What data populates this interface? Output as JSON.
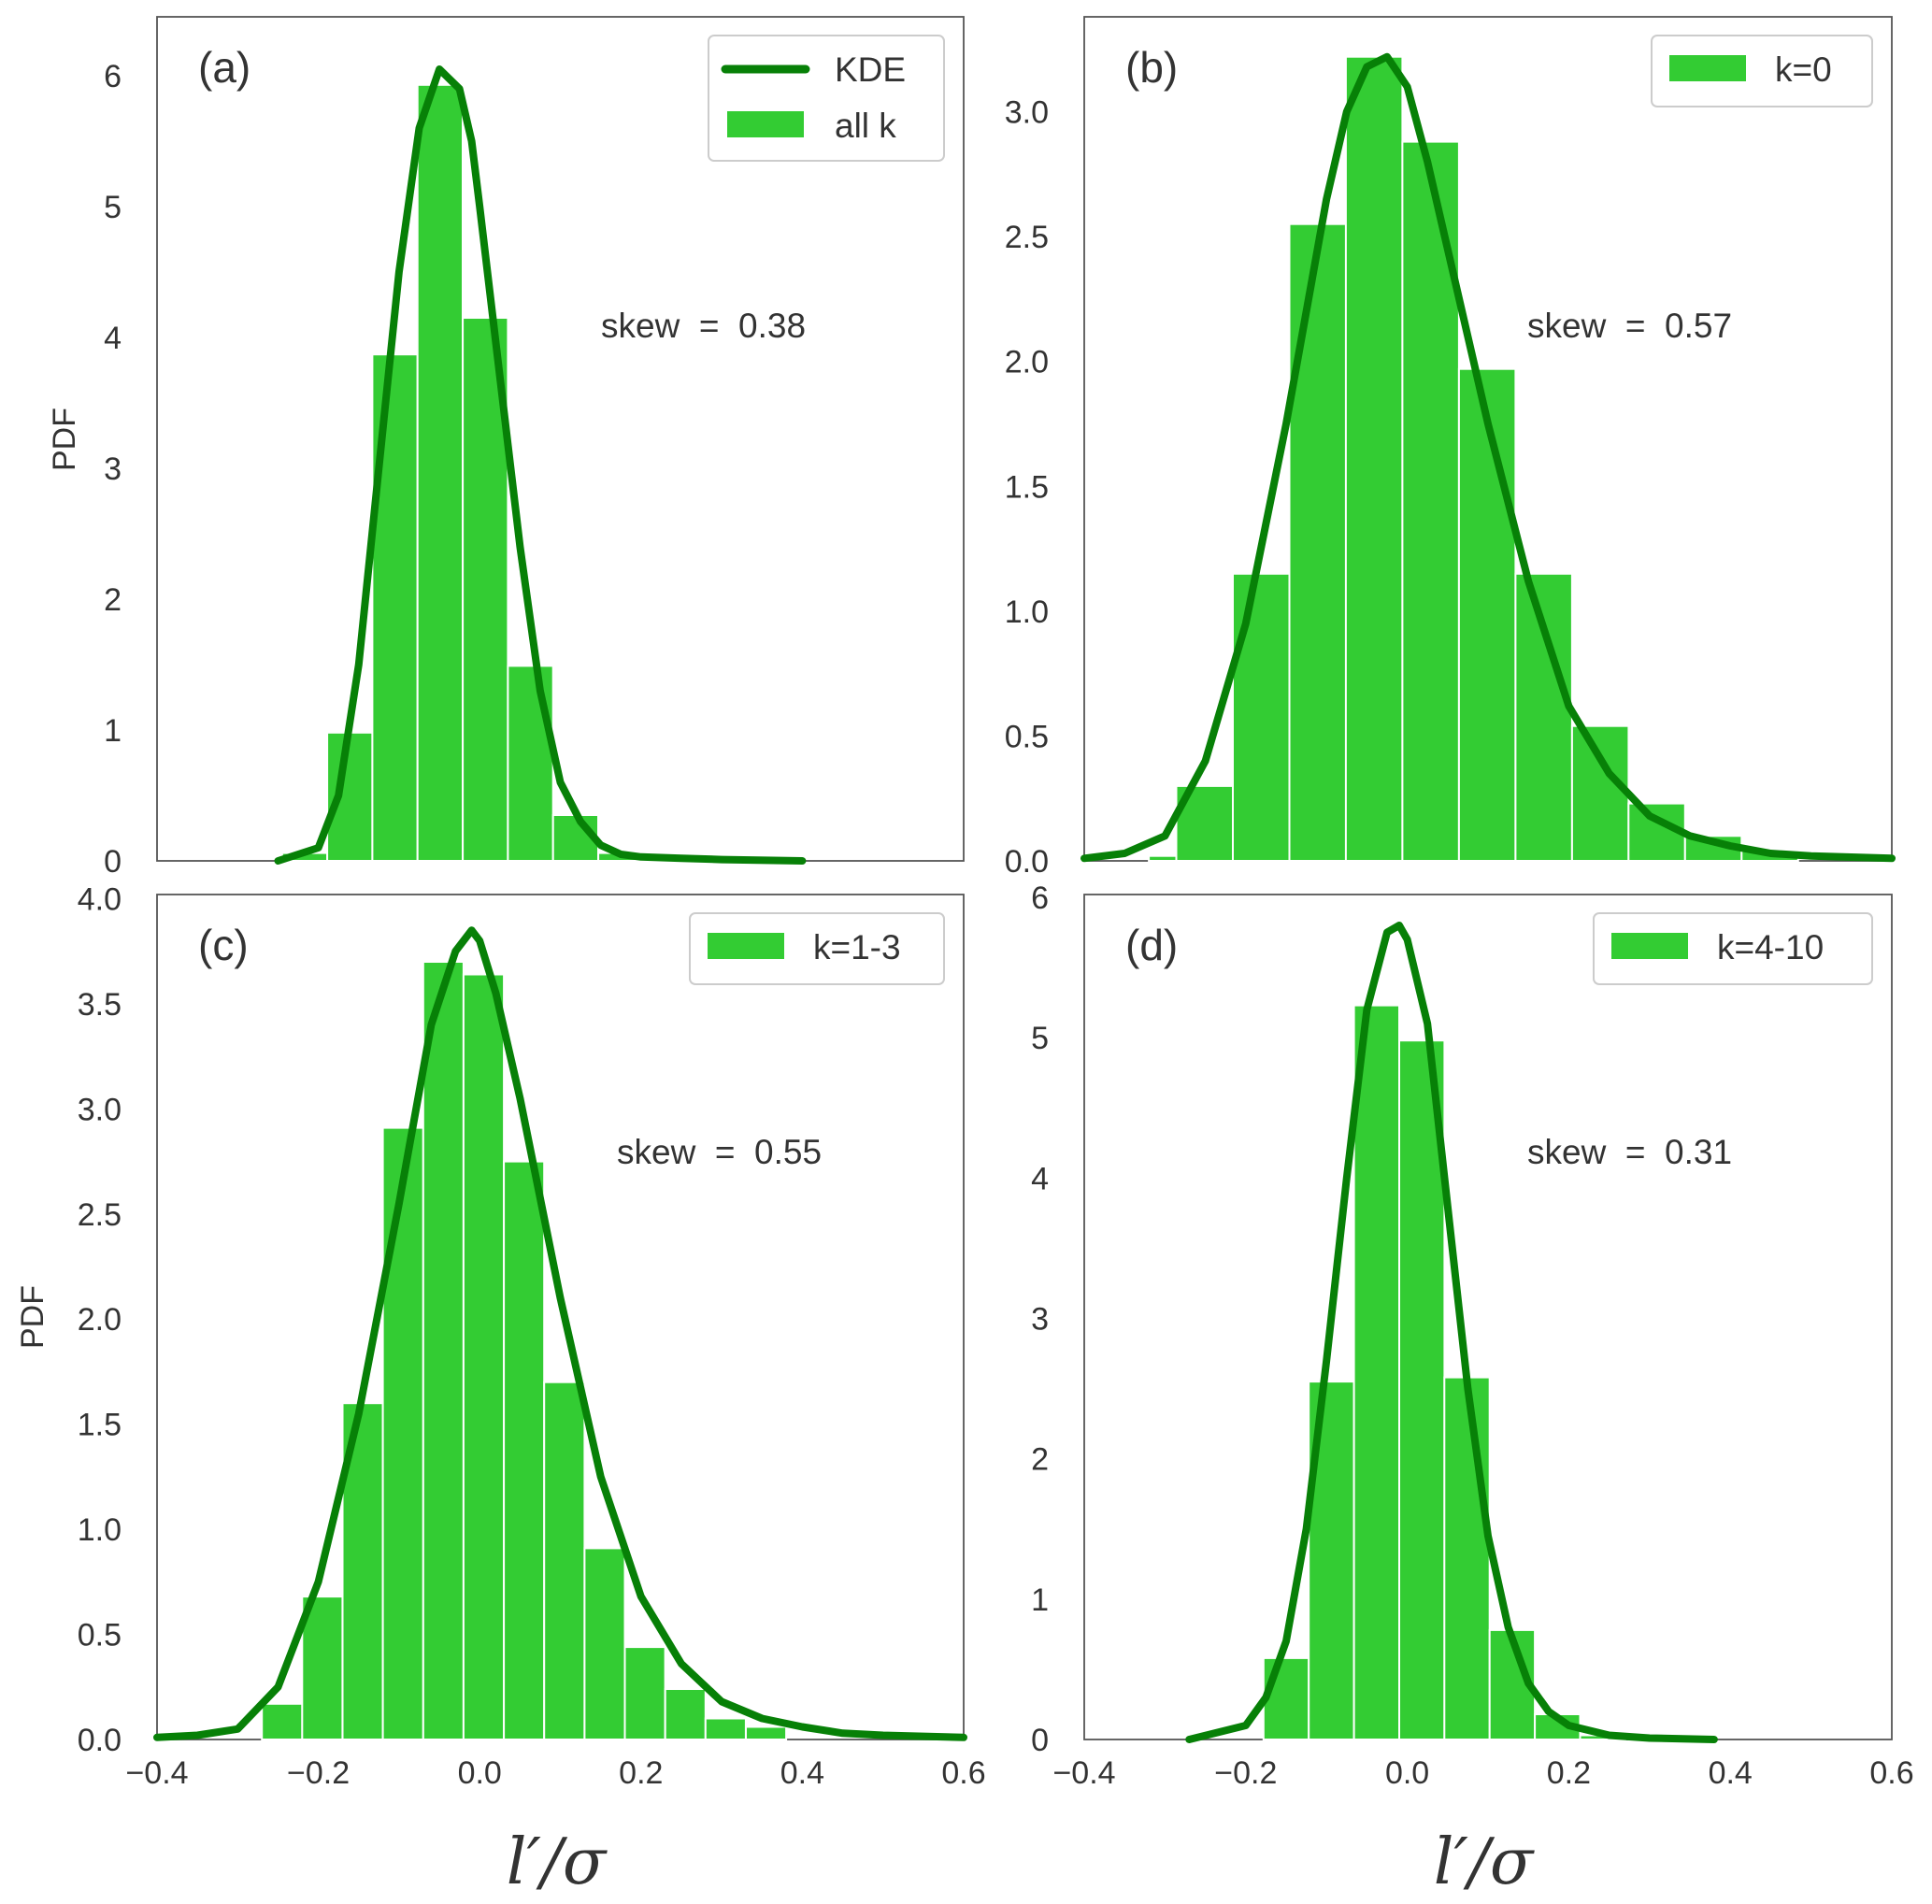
{
  "colors": {
    "bar": "#33cc33",
    "kde": "#078007",
    "frame": "#555555",
    "text": "#333333",
    "legend_border": "#cccccc"
  },
  "chart_data": [
    {
      "type": "bar",
      "panel_label": "(a)",
      "annotation": "skew  =  0.38",
      "legend": [
        {
          "kind": "line",
          "label": "KDE"
        },
        {
          "kind": "bar",
          "label": "all k"
        }
      ],
      "ylabel": "PDF",
      "xlabel": "",
      "xlim": [
        -0.4,
        0.6
      ],
      "ylim": [
        0,
        6.45
      ],
      "yticks": [
        0,
        1,
        2,
        3,
        4,
        5,
        6
      ],
      "ytick_labels": [
        "0",
        "1",
        "2",
        "3",
        "4",
        "5",
        "6"
      ],
      "xticks": [],
      "xtick_labels": [],
      "bins": [
        {
          "x0": -0.245,
          "x1": -0.189,
          "value": 0.06
        },
        {
          "x0": -0.189,
          "x1": -0.133,
          "value": 0.98
        },
        {
          "x0": -0.133,
          "x1": -0.077,
          "value": 3.87
        },
        {
          "x0": -0.077,
          "x1": -0.021,
          "value": 5.93
        },
        {
          "x0": -0.021,
          "x1": 0.035,
          "value": 4.15
        },
        {
          "x0": 0.035,
          "x1": 0.091,
          "value": 1.49
        },
        {
          "x0": 0.091,
          "x1": 0.147,
          "value": 0.35
        },
        {
          "x0": 0.147,
          "x1": 0.203,
          "value": 0.06
        },
        {
          "x0": 0.203,
          "x1": 0.259,
          "value": 0.01
        }
      ],
      "kde": {
        "x": [
          -0.25,
          -0.2,
          -0.175,
          -0.15,
          -0.125,
          -0.1,
          -0.075,
          -0.05,
          -0.025,
          -0.01,
          0.0,
          0.025,
          0.05,
          0.075,
          0.1,
          0.125,
          0.15,
          0.175,
          0.2,
          0.25,
          0.3,
          0.4
        ],
        "y": [
          0.0,
          0.1,
          0.5,
          1.5,
          3.0,
          4.5,
          5.6,
          6.05,
          5.9,
          5.5,
          5.0,
          3.7,
          2.4,
          1.3,
          0.6,
          0.3,
          0.12,
          0.05,
          0.03,
          0.02,
          0.01,
          0.0
        ]
      }
    },
    {
      "type": "bar",
      "panel_label": "(b)",
      "annotation": "skew  =  0.57",
      "legend": [
        {
          "kind": "bar",
          "label": "k=0"
        }
      ],
      "ylabel": "",
      "xlabel": "",
      "xlim": [
        -0.4,
        0.6
      ],
      "ylim": [
        0,
        3.38
      ],
      "yticks": [
        0,
        0.5,
        1,
        1.5,
        2,
        2.5,
        3
      ],
      "ytick_labels": [
        "0.0",
        "0.5",
        "1.0",
        "1.5",
        "2.0",
        "2.5",
        "3.0"
      ],
      "xticks": [],
      "xtick_labels": [],
      "bins": [
        {
          "x0": -0.32,
          "x1": -0.286,
          "value": 0.02
        },
        {
          "x0": -0.286,
          "x1": -0.216,
          "value": 0.3
        },
        {
          "x0": -0.216,
          "x1": -0.146,
          "value": 1.15
        },
        {
          "x0": -0.146,
          "x1": -0.076,
          "value": 2.55
        },
        {
          "x0": -0.076,
          "x1": -0.006,
          "value": 3.22
        },
        {
          "x0": -0.006,
          "x1": 0.064,
          "value": 2.88
        },
        {
          "x0": 0.064,
          "x1": 0.134,
          "value": 1.97
        },
        {
          "x0": 0.134,
          "x1": 0.204,
          "value": 1.15
        },
        {
          "x0": 0.204,
          "x1": 0.274,
          "value": 0.54
        },
        {
          "x0": 0.274,
          "x1": 0.344,
          "value": 0.23
        },
        {
          "x0": 0.344,
          "x1": 0.414,
          "value": 0.1
        },
        {
          "x0": 0.414,
          "x1": 0.484,
          "value": 0.04
        }
      ],
      "kde": {
        "x": [
          -0.4,
          -0.35,
          -0.3,
          -0.25,
          -0.2,
          -0.15,
          -0.1,
          -0.075,
          -0.05,
          -0.025,
          0.0,
          0.025,
          0.05,
          0.1,
          0.15,
          0.2,
          0.25,
          0.3,
          0.35,
          0.4,
          0.45,
          0.5,
          0.6
        ],
        "y": [
          0.01,
          0.03,
          0.1,
          0.4,
          0.95,
          1.75,
          2.65,
          3.0,
          3.18,
          3.22,
          3.1,
          2.8,
          2.45,
          1.75,
          1.12,
          0.62,
          0.35,
          0.18,
          0.1,
          0.06,
          0.03,
          0.02,
          0.01
        ]
      }
    },
    {
      "type": "bar",
      "panel_label": "(c)",
      "annotation": "skew  =  0.55",
      "legend": [
        {
          "kind": "bar",
          "label": "k=1-3"
        }
      ],
      "ylabel": "PDF",
      "xlabel": "l′/σ",
      "xlim": [
        -0.4,
        0.6
      ],
      "ylim": [
        0,
        4.02
      ],
      "yticks": [
        0,
        0.5,
        1,
        1.5,
        2,
        2.5,
        3,
        3.5,
        4
      ],
      "ytick_labels": [
        "0.0",
        "0.5",
        "1.0",
        "1.5",
        "2.0",
        "2.5",
        "3.0",
        "3.5",
        "4.0"
      ],
      "xticks": [
        -0.4,
        -0.2,
        0,
        0.2,
        0.4,
        0.6
      ],
      "xtick_labels": [
        "−0.4",
        "−0.2",
        "0.0",
        "0.2",
        "0.4",
        "0.6"
      ],
      "bins": [
        {
          "x0": -0.27,
          "x1": -0.22,
          "value": 0.17
        },
        {
          "x0": -0.22,
          "x1": -0.17,
          "value": 0.68
        },
        {
          "x0": -0.17,
          "x1": -0.12,
          "value": 1.6
        },
        {
          "x0": -0.12,
          "x1": -0.07,
          "value": 2.91
        },
        {
          "x0": -0.07,
          "x1": -0.02,
          "value": 3.7
        },
        {
          "x0": -0.02,
          "x1": 0.03,
          "value": 3.64
        },
        {
          "x0": 0.03,
          "x1": 0.08,
          "value": 2.75
        },
        {
          "x0": 0.08,
          "x1": 0.13,
          "value": 1.7
        },
        {
          "x0": 0.13,
          "x1": 0.18,
          "value": 0.91
        },
        {
          "x0": 0.18,
          "x1": 0.23,
          "value": 0.44
        },
        {
          "x0": 0.23,
          "x1": 0.28,
          "value": 0.24
        },
        {
          "x0": 0.28,
          "x1": 0.33,
          "value": 0.1
        },
        {
          "x0": 0.33,
          "x1": 0.38,
          "value": 0.06
        }
      ],
      "kde": {
        "x": [
          -0.4,
          -0.35,
          -0.3,
          -0.25,
          -0.2,
          -0.15,
          -0.1,
          -0.06,
          -0.03,
          -0.01,
          0.0,
          0.02,
          0.05,
          0.1,
          0.15,
          0.2,
          0.25,
          0.3,
          0.35,
          0.4,
          0.45,
          0.5,
          0.6
        ],
        "y": [
          0.01,
          0.02,
          0.05,
          0.25,
          0.75,
          1.55,
          2.55,
          3.4,
          3.75,
          3.85,
          3.8,
          3.55,
          3.05,
          2.1,
          1.25,
          0.68,
          0.36,
          0.18,
          0.1,
          0.06,
          0.03,
          0.02,
          0.01
        ]
      }
    },
    {
      "type": "bar",
      "panel_label": "(d)",
      "annotation": "skew  =  0.31",
      "legend": [
        {
          "kind": "bar",
          "label": "k=4-10"
        }
      ],
      "ylabel": "",
      "xlabel": "l′/σ",
      "xlim": [
        -0.4,
        0.6
      ],
      "ylim": [
        0,
        6.02
      ],
      "yticks": [
        0,
        1,
        2,
        3,
        4,
        5,
        6
      ],
      "ytick_labels": [
        "0",
        "1",
        "2",
        "3",
        "4",
        "5",
        "6"
      ],
      "xticks": [
        -0.4,
        -0.2,
        0,
        0.2,
        0.4,
        0.6
      ],
      "xtick_labels": [
        "−0.4",
        "−0.2",
        "0.0",
        "0.2",
        "0.4",
        "0.6"
      ],
      "bins": [
        {
          "x0": -0.178,
          "x1": -0.122,
          "value": 0.58
        },
        {
          "x0": -0.122,
          "x1": -0.066,
          "value": 2.55
        },
        {
          "x0": -0.066,
          "x1": -0.01,
          "value": 5.23
        },
        {
          "x0": -0.01,
          "x1": 0.046,
          "value": 4.98
        },
        {
          "x0": 0.046,
          "x1": 0.102,
          "value": 2.58
        },
        {
          "x0": 0.102,
          "x1": 0.158,
          "value": 0.78
        },
        {
          "x0": 0.158,
          "x1": 0.214,
          "value": 0.18
        },
        {
          "x0": 0.214,
          "x1": 0.27,
          "value": 0.03
        }
      ],
      "kde": {
        "x": [
          -0.27,
          -0.2,
          -0.175,
          -0.15,
          -0.125,
          -0.1,
          -0.075,
          -0.05,
          -0.025,
          -0.01,
          0.0,
          0.025,
          0.05,
          0.075,
          0.1,
          0.125,
          0.15,
          0.175,
          0.2,
          0.25,
          0.3,
          0.38
        ],
        "y": [
          0.0,
          0.1,
          0.3,
          0.7,
          1.5,
          2.7,
          4.0,
          5.2,
          5.75,
          5.8,
          5.7,
          5.1,
          3.8,
          2.5,
          1.45,
          0.8,
          0.4,
          0.2,
          0.1,
          0.03,
          0.01,
          0.0
        ]
      }
    }
  ]
}
